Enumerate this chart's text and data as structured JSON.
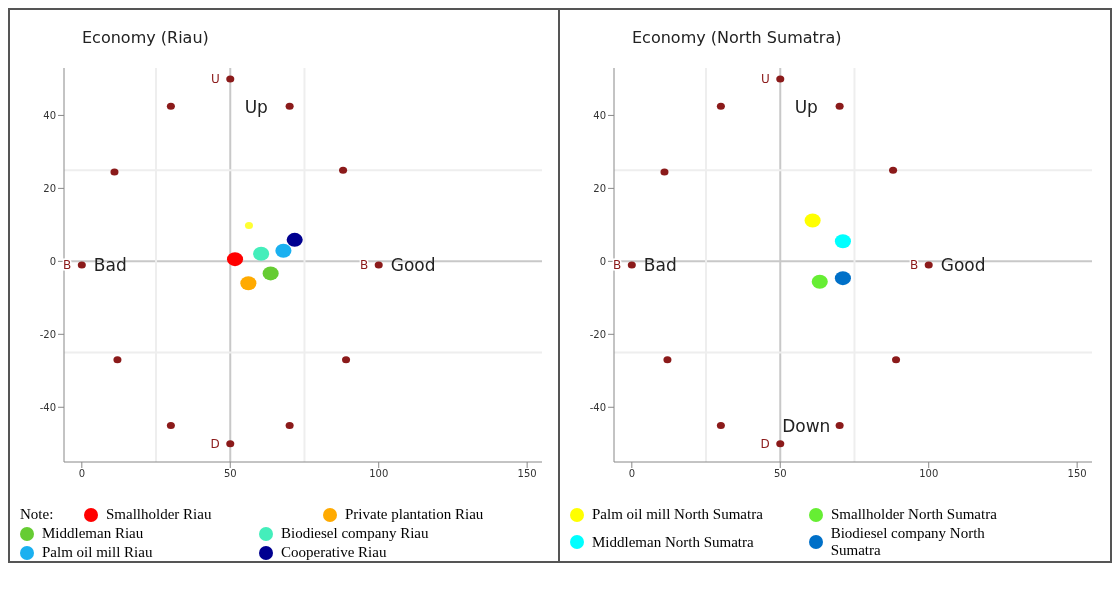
{
  "chart_data": [
    {
      "type": "scatter",
      "title": "Economy (Riau)",
      "xlim": [
        -6,
        155
      ],
      "ylim": [
        -55,
        53
      ],
      "xticks": [
        0,
        50,
        100,
        150
      ],
      "yticks": [
        -40,
        -20,
        0,
        20,
        40
      ],
      "grid": false,
      "marker": "circle",
      "legend": "bottom",
      "legend_title": "Note:",
      "ref_lines": [
        {
          "axis": "y",
          "value": 0,
          "color": "#c8c8c8"
        },
        {
          "axis": "x",
          "value": 50,
          "color": "#c8c8c8"
        },
        {
          "axis": "y",
          "value": 25,
          "color": "#eeeeee"
        },
        {
          "axis": "y",
          "value": -25,
          "color": "#eeeeee"
        },
        {
          "axis": "x",
          "value": 25,
          "color": "#eeeeee"
        },
        {
          "axis": "x",
          "value": 75,
          "color": "#eeeeee"
        }
      ],
      "annotations": [
        {
          "text": "Up",
          "x": 50,
          "y": 50
        },
        {
          "text": "Bad",
          "x": 0,
          "y": -1
        },
        {
          "text": "Good",
          "x": 100,
          "y": -1
        }
      ],
      "series": [
        {
          "color": "#8b1a1a",
          "x": [
            30,
            70,
            11,
            88,
            12,
            89,
            30,
            70,
            50,
            50,
            0,
            100
          ],
          "values": [
            42.5,
            42.5,
            24.5,
            25,
            -27,
            -27,
            -45,
            -45,
            50,
            -50,
            -1,
            -1
          ],
          "value_labels": [
            null,
            null,
            null,
            null,
            null,
            null,
            null,
            null,
            "U",
            "D",
            "B",
            "B"
          ]
        },
        {
          "color": "#ffff33",
          "x": [
            56.3
          ],
          "values": [
            9.8
          ]
        },
        {
          "name": "Smallholder Riau",
          "color": "#ff0000",
          "x": [
            51.6
          ],
          "values": [
            0.6
          ]
        },
        {
          "name": "Private plantation Riau",
          "color": "#ffaa00",
          "x": [
            56.1
          ],
          "values": [
            -6
          ]
        },
        {
          "name": "Middleman Riau",
          "color": "#66cc33",
          "x": [
            63.6
          ],
          "values": [
            -3.3
          ]
        },
        {
          "name": "Biodiesel company Riau",
          "color": "#44eebb",
          "x": [
            60.4
          ],
          "values": [
            2.1
          ]
        },
        {
          "name": "Palm oil mill Riau",
          "color": "#1ab0f0",
          "x": [
            67.9
          ],
          "values": [
            2.9
          ]
        },
        {
          "name": "Cooperative Riau",
          "color": "#000090",
          "x": [
            71.7
          ],
          "values": [
            5.9
          ]
        }
      ]
    },
    {
      "type": "scatter",
      "title": "Economy (North Sumatra)",
      "xlim": [
        -6,
        155
      ],
      "ylim": [
        -55,
        53
      ],
      "xticks": [
        0,
        50,
        100,
        150
      ],
      "yticks": [
        -40,
        -20,
        0,
        20,
        40
      ],
      "grid": false,
      "marker": "circle",
      "legend": "bottom",
      "ref_lines": [
        {
          "axis": "y",
          "value": 0,
          "color": "#c8c8c8"
        },
        {
          "axis": "x",
          "value": 50,
          "color": "#c8c8c8"
        },
        {
          "axis": "y",
          "value": 25,
          "color": "#eeeeee"
        },
        {
          "axis": "y",
          "value": -25,
          "color": "#eeeeee"
        },
        {
          "axis": "x",
          "value": 25,
          "color": "#eeeeee"
        },
        {
          "axis": "x",
          "value": 75,
          "color": "#eeeeee"
        }
      ],
      "annotations": [
        {
          "text": "Up",
          "x": 50,
          "y": 50
        },
        {
          "text": "Bad",
          "x": 0,
          "y": -1
        },
        {
          "text": "Good",
          "x": 100,
          "y": -1
        },
        {
          "text": "Down",
          "x": 50,
          "y": -50
        }
      ],
      "series": [
        {
          "color": "#8b1a1a",
          "x": [
            30,
            70,
            11,
            88,
            12,
            89,
            30,
            70,
            50,
            50,
            0,
            100
          ],
          "values": [
            42.5,
            42.5,
            24.5,
            25,
            -27,
            -27,
            -45,
            -45,
            50,
            -50,
            -1,
            -1
          ],
          "value_labels": [
            null,
            null,
            null,
            null,
            null,
            null,
            null,
            null,
            "U",
            "D",
            "B",
            "B"
          ]
        },
        {
          "name": "Palm oil mill North Sumatra",
          "color": "#ffff00",
          "x": [
            60.9
          ],
          "values": [
            11.2
          ]
        },
        {
          "name": "Smallholder North Sumatra",
          "color": "#66ee33",
          "x": [
            63.3
          ],
          "values": [
            -5.6
          ]
        },
        {
          "name": "Middleman North Sumatra",
          "color": "#00ffff",
          "x": [
            71.1
          ],
          "values": [
            5.5
          ]
        },
        {
          "name": "Biodiesel company North Sumatra",
          "color": "#0070c8",
          "x": [
            71.1
          ],
          "values": [
            -4.6
          ]
        }
      ]
    }
  ]
}
